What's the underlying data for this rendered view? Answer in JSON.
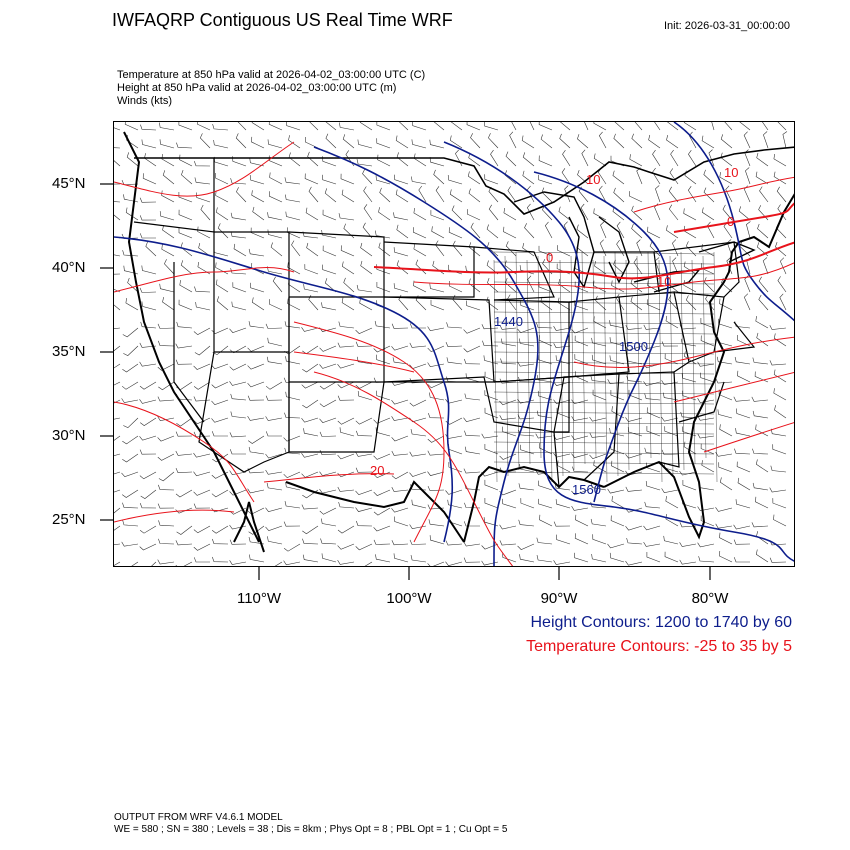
{
  "header": {
    "title": "IWFAQRP Contiguous US Real Time WRF",
    "init": "Init: 2026-03-31_00:00:00"
  },
  "subtitles": [
    "Temperature at 850 hPa valid at 2026-04-02_03:00:00 UTC   (C)",
    "Height at 850 hPa valid at 2026-04-02_03:00:00 UTC   (m)",
    "Winds   (kts)"
  ],
  "map": {
    "lat_labels": [
      "45°N",
      "40°N",
      "35°N",
      "30°N",
      "25°N"
    ],
    "lon_labels": [
      "110°W",
      "100°W",
      "90°W",
      "80°W"
    ],
    "height_contour_labels": [
      "1440",
      "1500",
      "1560"
    ],
    "temp_contour_labels": [
      "10",
      "10",
      "0",
      "0",
      "10",
      "20"
    ],
    "colors": {
      "height": "#0d1d8c",
      "temperature": "#e8131b",
      "boundaries": "#000000"
    }
  },
  "legend": {
    "height": "Height Contours: 1200 to 1740 by 60",
    "temperature": "Temperature Contours: -25 to 35 by 5"
  },
  "footer": {
    "model": "OUTPUT FROM WRF V4.6.1 MODEL",
    "config": "WE = 580 ; SN = 380 ; Levels = 38 ; Dis = 8km ; Phys Opt = 8 ; PBL Opt = 1 ; Cu Opt = 5"
  }
}
